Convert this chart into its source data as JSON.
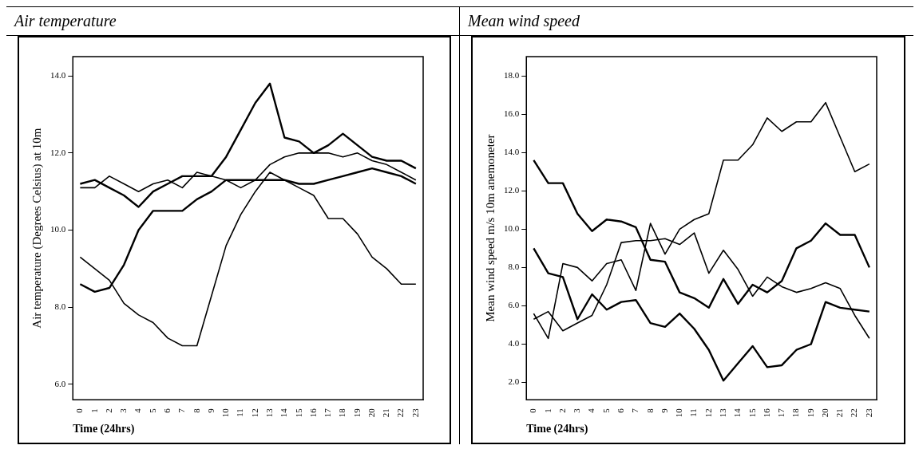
{
  "chart_data": [
    {
      "type": "line",
      "title": "Air temperature",
      "xlabel": "Time (24hrs)",
      "ylabel": "Air temperature (Degrees Celsius) at 10m",
      "categories": [
        "0",
        "1",
        "2",
        "3",
        "4",
        "5",
        "6",
        "7",
        "8",
        "9",
        "10",
        "11",
        "12",
        "13",
        "14",
        "15",
        "16",
        "17",
        "18",
        "19",
        "20",
        "21",
        "22",
        "23"
      ],
      "series": [
        {
          "color": "#000000",
          "values": [
            11.2,
            11.3,
            11.1,
            10.9,
            10.6,
            11.0,
            11.2,
            11.4,
            11.4,
            11.4,
            11.9,
            12.6,
            13.3,
            13.8,
            12.4,
            12.3,
            12.0,
            12.2,
            12.5,
            12.2,
            11.9,
            11.8,
            11.8,
            11.6
          ]
        },
        {
          "color": "#000000",
          "values": [
            11.1,
            11.1,
            11.4,
            11.2,
            11.0,
            11.2,
            11.3,
            11.1,
            11.5,
            11.4,
            11.3,
            11.1,
            11.3,
            11.7,
            11.9,
            12.0,
            12.0,
            12.0,
            11.9,
            12.0,
            11.8,
            11.7,
            11.5,
            11.3
          ]
        },
        {
          "color": "#000000",
          "values": [
            8.6,
            8.4,
            8.5,
            9.1,
            10.0,
            10.5,
            10.5,
            10.5,
            10.8,
            11.0,
            11.3,
            11.3,
            11.3,
            11.3,
            11.3,
            11.2,
            11.2,
            11.3,
            11.4,
            11.5,
            11.6,
            11.5,
            11.4,
            11.2
          ]
        },
        {
          "color": "#000000",
          "values": [
            9.3,
            9.0,
            8.7,
            8.1,
            7.8,
            7.6,
            7.2,
            7.0,
            7.0,
            8.3,
            9.6,
            10.4,
            11.0,
            11.5,
            11.3,
            11.1,
            10.9,
            10.3,
            10.3,
            9.9,
            9.3,
            9.0,
            8.6,
            8.6
          ]
        }
      ],
      "ylim": [
        5.6,
        14.5
      ],
      "yticks": [
        {
          "value": 6,
          "label": "6.0"
        },
        {
          "value": 8,
          "label": "8.0"
        },
        {
          "value": 10,
          "label": "10.0"
        },
        {
          "value": 12,
          "label": "12.0"
        },
        {
          "value": 14,
          "label": "14.0"
        }
      ],
      "grid": false,
      "legend": false
    },
    {
      "type": "line",
      "title": "Mean wind speed",
      "xlabel": "Time (24hrs)",
      "ylabel": "Mean wind speed m/s 10m anemoneter",
      "categories": [
        "0",
        "1",
        "2",
        "3",
        "4",
        "5",
        "6",
        "7",
        "8",
        "9",
        "10",
        "11",
        "12",
        "13",
        "14",
        "15",
        "16",
        "17",
        "18",
        "19",
        "20",
        "21",
        "22",
        "23"
      ],
      "series": [
        {
          "color": "#000000",
          "values": [
            13.6,
            12.4,
            12.4,
            10.8,
            9.9,
            10.5,
            10.4,
            10.1,
            8.4,
            8.3,
            6.7,
            6.4,
            5.9,
            7.4,
            6.1,
            7.1,
            6.7,
            7.3,
            9.0,
            9.4,
            10.3,
            9.7,
            9.7,
            8.0
          ]
        },
        {
          "color": "#000000",
          "values": [
            5.6,
            4.3,
            8.2,
            8.0,
            7.3,
            8.2,
            8.4,
            6.8,
            10.3,
            8.7,
            10.0,
            10.5,
            10.8,
            13.6,
            13.6,
            14.4,
            15.8,
            15.1,
            15.6,
            15.6,
            16.6,
            14.8,
            13.0,
            13.4
          ]
        },
        {
          "color": "#000000",
          "values": [
            9.0,
            7.7,
            7.5,
            5.3,
            6.6,
            5.8,
            6.2,
            6.3,
            5.1,
            4.9,
            5.6,
            4.8,
            3.7,
            2.1,
            3.0,
            3.9,
            2.8,
            2.9,
            3.7,
            4.0,
            6.2,
            5.9,
            5.8,
            5.7
          ]
        },
        {
          "color": "#000000",
          "values": [
            5.3,
            5.7,
            4.7,
            5.1,
            5.5,
            7.1,
            9.3,
            9.4,
            9.4,
            9.5,
            9.2,
            9.8,
            7.7,
            8.9,
            7.9,
            6.5,
            7.5,
            7.0,
            6.7,
            6.9,
            7.2,
            6.9,
            5.5,
            4.3
          ]
        }
      ],
      "ylim": [
        1.1,
        19
      ],
      "yticks": [
        {
          "value": 2,
          "label": "2.0"
        },
        {
          "value": 4,
          "label": "4.0"
        },
        {
          "value": 6,
          "label": "6.0"
        },
        {
          "value": 8,
          "label": "8.0"
        },
        {
          "value": 10,
          "label": "10.0"
        },
        {
          "value": 12,
          "label": "12.0"
        },
        {
          "value": 14,
          "label": "14.0"
        },
        {
          "value": 16,
          "label": "16.0"
        },
        {
          "value": 18,
          "label": "18.0"
        }
      ],
      "grid": false,
      "legend": false
    }
  ]
}
